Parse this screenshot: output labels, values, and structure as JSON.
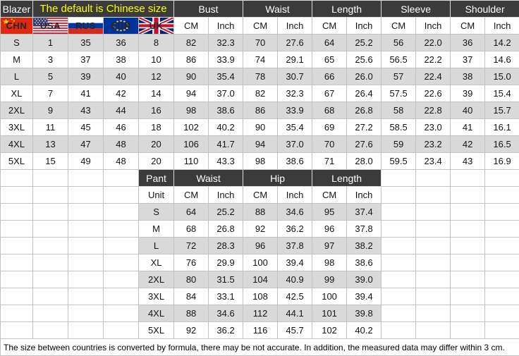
{
  "colors": {
    "header_bg": "#3b3b3b",
    "header_text": "#ffffff",
    "subtitle_text": "#ffff00",
    "row_alt_bg": "#d9d9d9",
    "grid_border": "#c3c3c3"
  },
  "units": {
    "cm": "CM",
    "inch": "Inch"
  },
  "blazer": {
    "title": "Blazer",
    "subtitle": "The default is Chinese size",
    "countries": [
      "CHN",
      "USA",
      "RUS",
      "EUR",
      "UK"
    ],
    "country_flags": [
      "china-flag",
      "usa-flag",
      "russia-flag",
      "eu-flag",
      "uk-flag"
    ],
    "measure_headers": [
      "Bust",
      "Waist",
      "Length",
      "Sleeve",
      "Shoulder"
    ],
    "rows": [
      {
        "size": "S",
        "intl_sizes": [
          "1",
          "35",
          "36",
          "8"
        ],
        "values": [
          "82",
          "32.3",
          "70",
          "27.6",
          "64",
          "25.2",
          "56",
          "22.0",
          "36",
          "14.2"
        ]
      },
      {
        "size": "M",
        "intl_sizes": [
          "3",
          "37",
          "38",
          "10"
        ],
        "values": [
          "86",
          "33.9",
          "74",
          "29.1",
          "65",
          "25.6",
          "56.5",
          "22.2",
          "37",
          "14.6"
        ]
      },
      {
        "size": "L",
        "intl_sizes": [
          "5",
          "39",
          "40",
          "12"
        ],
        "values": [
          "90",
          "35.4",
          "78",
          "30.7",
          "66",
          "26.0",
          "57",
          "22.4",
          "38",
          "15.0"
        ]
      },
      {
        "size": "XL",
        "intl_sizes": [
          "7",
          "41",
          "42",
          "14"
        ],
        "values": [
          "94",
          "37.0",
          "82",
          "32.3",
          "67",
          "26.4",
          "57.5",
          "22.6",
          "39",
          "15.4"
        ]
      },
      {
        "size": "2XL",
        "intl_sizes": [
          "9",
          "43",
          "44",
          "16"
        ],
        "values": [
          "98",
          "38.6",
          "86",
          "33.9",
          "68",
          "26.8",
          "58",
          "22.8",
          "40",
          "15.7"
        ]
      },
      {
        "size": "3XL",
        "intl_sizes": [
          "11",
          "45",
          "46",
          "18"
        ],
        "values": [
          "102",
          "40.2",
          "90",
          "35.4",
          "69",
          "27.2",
          "58.5",
          "23.0",
          "41",
          "16.1"
        ]
      },
      {
        "size": "4XL",
        "intl_sizes": [
          "13",
          "47",
          "48",
          "20"
        ],
        "values": [
          "106",
          "41.7",
          "94",
          "37.0",
          "70",
          "27.6",
          "59",
          "23.2",
          "42",
          "16.5"
        ]
      },
      {
        "size": "5XL",
        "intl_sizes": [
          "15",
          "49",
          "48",
          "20"
        ],
        "values": [
          "110",
          "43.3",
          "98",
          "38.6",
          "71",
          "28.0",
          "59.5",
          "23.4",
          "43",
          "16.9"
        ]
      }
    ]
  },
  "pant": {
    "title": "Pant",
    "unit_row_label": "Unit",
    "measure_headers": [
      "Waist",
      "Hip",
      "Length"
    ],
    "rows": [
      {
        "size": "S",
        "values": [
          "64",
          "25.2",
          "88",
          "34.6",
          "95",
          "37.4"
        ]
      },
      {
        "size": "M",
        "values": [
          "68",
          "26.8",
          "92",
          "36.2",
          "96",
          "37.8"
        ]
      },
      {
        "size": "L",
        "values": [
          "72",
          "28.3",
          "96",
          "37.8",
          "97",
          "38.2"
        ]
      },
      {
        "size": "XL",
        "values": [
          "76",
          "29.9",
          "100",
          "39.4",
          "98",
          "38.6"
        ]
      },
      {
        "size": "2XL",
        "values": [
          "80",
          "31.5",
          "104",
          "40.9",
          "99",
          "39.0"
        ]
      },
      {
        "size": "3XL",
        "values": [
          "84",
          "33.1",
          "108",
          "42.5",
          "100",
          "39.4"
        ]
      },
      {
        "size": "4XL",
        "values": [
          "88",
          "34.6",
          "112",
          "44.1",
          "101",
          "39.8"
        ]
      },
      {
        "size": "5XL",
        "values": [
          "92",
          "36.2",
          "116",
          "45.7",
          "102",
          "40.2"
        ]
      }
    ]
  },
  "footnote": "The size between countries is converted by formula, there may be not accurate. In addition, the measured data may differ within 3 cm."
}
